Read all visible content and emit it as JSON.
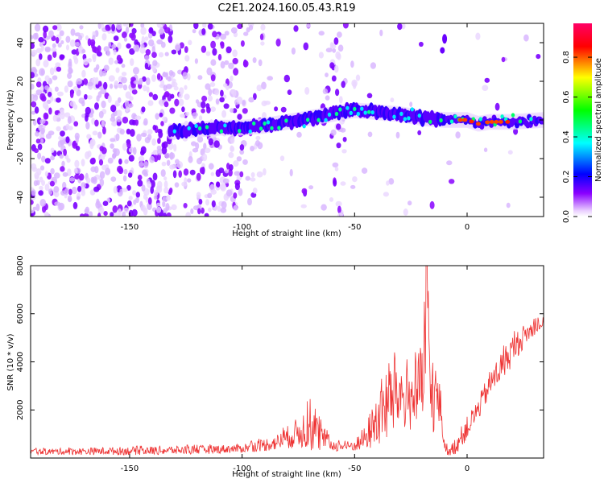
{
  "title": "C2E1.2024.160.05.43.R19",
  "chart_data": [
    {
      "type": "heatmap",
      "xlabel": "Height of straight line (km)",
      "ylabel": "Frequency (Hz)",
      "xlim": [
        -194,
        34
      ],
      "ylim": [
        -50,
        50
      ],
      "xticks": [
        -150,
        -100,
        -50,
        0
      ],
      "yticks": [
        -40,
        -20,
        0,
        20,
        40
      ],
      "colorbar": {
        "label": "Normalized spectral amplitude",
        "range": [
          0,
          0.97
        ],
        "ticks": [
          0.0,
          0.2,
          0.4,
          0.6,
          0.8
        ],
        "colormap": [
          "#ffffff",
          "#ead0ff",
          "#8a00ff",
          "#0000ff",
          "#00ffff",
          "#00ff00",
          "#ffff00",
          "#ff0000",
          "#ff0066"
        ]
      },
      "ridge": {
        "description_points_x": [
          -130,
          -120,
          -110,
          -100,
          -90,
          -80,
          -70,
          -60,
          -50,
          -40,
          -30,
          -20,
          -10,
          0,
          5,
          10,
          20,
          34
        ],
        "description_points_y": [
          -6,
          -5,
          -4,
          -4,
          -3,
          -1,
          1,
          3,
          5,
          4,
          3,
          1,
          0,
          0,
          -2,
          -1,
          -1,
          0
        ]
      },
      "grid": false
    },
    {
      "type": "line",
      "xlabel": "Height of straight line (km)",
      "ylabel": "SNR (10 * v/v)",
      "xlim": [
        -194,
        34
      ],
      "ylim": [
        0,
        8000
      ],
      "xticks": [
        -150,
        -100,
        -50,
        0
      ],
      "yticks": [
        2000,
        4000,
        6000,
        8000
      ],
      "color": "#ee3333",
      "series_envelope": {
        "x": [
          -194,
          -150,
          -120,
          -100,
          -85,
          -75,
          -70,
          -65,
          -60,
          -55,
          -50,
          -45,
          -40,
          -35,
          -30,
          -25,
          -20,
          -18,
          -16,
          -12,
          -10,
          -8,
          -5,
          0,
          5,
          10,
          15,
          20,
          25,
          30,
          34
        ],
        "mean": [
          250,
          280,
          320,
          380,
          600,
          1000,
          1200,
          800,
          500,
          450,
          500,
          800,
          1500,
          2200,
          2500,
          2300,
          2800,
          3200,
          2700,
          2100,
          500,
          200,
          500,
          1200,
          2000,
          3000,
          3700,
          4400,
          5000,
          5400,
          5600
        ],
        "peak": [
          400,
          500,
          550,
          600,
          1000,
          1800,
          2500,
          1600,
          800,
          700,
          800,
          1500,
          3000,
          4500,
          4300,
          4000,
          5000,
          8000,
          5200,
          3300,
          900,
          400,
          1000,
          1800,
          2600,
          3700,
          4500,
          5200,
          5600,
          5800,
          5900
        ]
      },
      "grid": false
    }
  ]
}
